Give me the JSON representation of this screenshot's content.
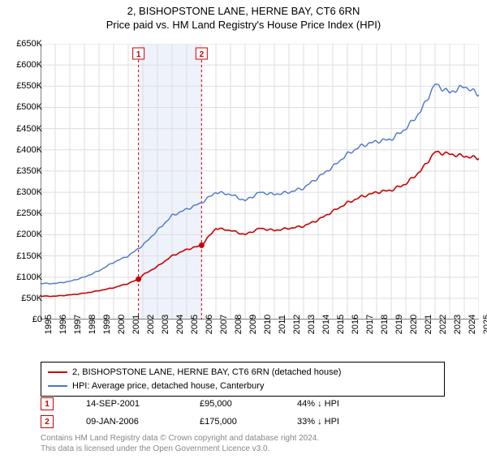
{
  "title_main": "2, BISHOPSTONE LANE, HERNE BAY, CT6 6RN",
  "title_sub": "Price paid vs. HM Land Registry's House Price Index (HPI)",
  "chart": {
    "type": "line",
    "xlim": [
      1995,
      2025
    ],
    "ylim": [
      0,
      650000
    ],
    "ytick_step": 50000,
    "ytick_format": "£K",
    "xtick_step": 1,
    "background_color": "#ffffff",
    "grid_color": "#dddddd",
    "band": {
      "start": 2001.7,
      "end": 2006.02,
      "fill": "#eef3fb"
    },
    "markers": [
      {
        "n": "1",
        "x": 2001.7,
        "y": 95000,
        "color": "#cc0000"
      },
      {
        "n": "2",
        "x": 2006.02,
        "y": 175000,
        "color": "#cc0000"
      }
    ],
    "series": [
      {
        "name": "2, BISHOPSTONE LANE, HERNE BAY, CT6 6RN (detached house)",
        "color": "#cc0000",
        "line_width": 1.6,
        "data": [
          [
            1995,
            55000
          ],
          [
            1996,
            55000
          ],
          [
            1997,
            58000
          ],
          [
            1998,
            62000
          ],
          [
            1999,
            68000
          ],
          [
            2000,
            75000
          ],
          [
            2001,
            85000
          ],
          [
            2001.7,
            95000
          ],
          [
            2002,
            105000
          ],
          [
            2003,
            125000
          ],
          [
            2004,
            150000
          ],
          [
            2005,
            165000
          ],
          [
            2006.02,
            175000
          ],
          [
            2006.5,
            195000
          ],
          [
            2007,
            215000
          ],
          [
            2008,
            210000
          ],
          [
            2009,
            200000
          ],
          [
            2010,
            215000
          ],
          [
            2011,
            210000
          ],
          [
            2012,
            215000
          ],
          [
            2013,
            220000
          ],
          [
            2014,
            235000
          ],
          [
            2015,
            255000
          ],
          [
            2016,
            275000
          ],
          [
            2017,
            290000
          ],
          [
            2018,
            300000
          ],
          [
            2019,
            305000
          ],
          [
            2020,
            320000
          ],
          [
            2021,
            350000
          ],
          [
            2022,
            395000
          ],
          [
            2023,
            390000
          ],
          [
            2024,
            385000
          ],
          [
            2025,
            380000
          ]
        ]
      },
      {
        "name": "HPI: Average price, detached house, Canterbury",
        "color": "#4a76c9",
        "line_width": 1.4,
        "data": [
          [
            1995,
            85000
          ],
          [
            1996,
            85000
          ],
          [
            1997,
            90000
          ],
          [
            1998,
            100000
          ],
          [
            1999,
            115000
          ],
          [
            2000,
            135000
          ],
          [
            2001,
            150000
          ],
          [
            2002,
            175000
          ],
          [
            2003,
            210000
          ],
          [
            2004,
            245000
          ],
          [
            2005,
            260000
          ],
          [
            2006,
            275000
          ],
          [
            2007,
            300000
          ],
          [
            2008,
            295000
          ],
          [
            2009,
            280000
          ],
          [
            2010,
            300000
          ],
          [
            2011,
            295000
          ],
          [
            2012,
            300000
          ],
          [
            2013,
            310000
          ],
          [
            2014,
            335000
          ],
          [
            2015,
            360000
          ],
          [
            2016,
            390000
          ],
          [
            2017,
            410000
          ],
          [
            2018,
            420000
          ],
          [
            2019,
            425000
          ],
          [
            2020,
            450000
          ],
          [
            2021,
            490000
          ],
          [
            2022,
            555000
          ],
          [
            2023,
            535000
          ],
          [
            2024,
            550000
          ],
          [
            2025,
            530000
          ]
        ]
      }
    ]
  },
  "legend": {
    "items": [
      {
        "color": "#cc0000",
        "label": "2, BISHOPSTONE LANE, HERNE BAY, CT6 6RN (detached house)"
      },
      {
        "color": "#4a76c9",
        "label": "HPI: Average price, detached house, Canterbury"
      }
    ]
  },
  "marker_rows": [
    {
      "n": "1",
      "color": "#cc0000",
      "date": "14-SEP-2001",
      "price": "£95,000",
      "delta": "44% ↓ HPI"
    },
    {
      "n": "2",
      "color": "#cc0000",
      "date": "09-JAN-2006",
      "price": "£175,000",
      "delta": "33% ↓ HPI"
    }
  ],
  "copyright_line1": "Contains HM Land Registry data © Crown copyright and database right 2024.",
  "copyright_line2": "This data is licensed under the Open Government Licence v3.0."
}
